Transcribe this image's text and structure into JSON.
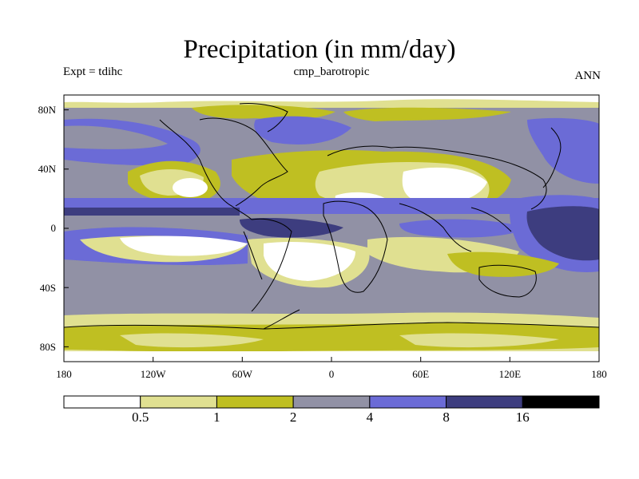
{
  "title": "Precipitation (in mm/day)",
  "expt": "Expt = tdihc",
  "case_name": "cmp_barotropic",
  "season": "ANN",
  "lon_ticks": [
    "180",
    "120W",
    "60W",
    "0",
    "60E",
    "120E",
    "180"
  ],
  "lat_ticks": [
    "80N",
    "40N",
    "0",
    "40S",
    "80S"
  ],
  "colorbar": {
    "colors": [
      "#ffffff",
      "#e0e091",
      "#bfbf22",
      "#9191a5",
      "#6b6bd6",
      "#3d3d7f",
      "#000000"
    ],
    "labels": [
      "0.5",
      "1",
      "2",
      "4",
      "8",
      "16"
    ]
  },
  "chart_data": {
    "type": "heatmap",
    "title": "Precipitation (in mm/day)",
    "variable": "Precipitation",
    "units": "mm/day",
    "season": "ANN",
    "experiment": "tdihc",
    "case": "cmp_barotropic",
    "x_range": [
      -180,
      180
    ],
    "y_range": [
      -90,
      90
    ],
    "contour_levels": [
      0.5,
      1,
      2,
      4,
      8,
      16
    ]
  }
}
